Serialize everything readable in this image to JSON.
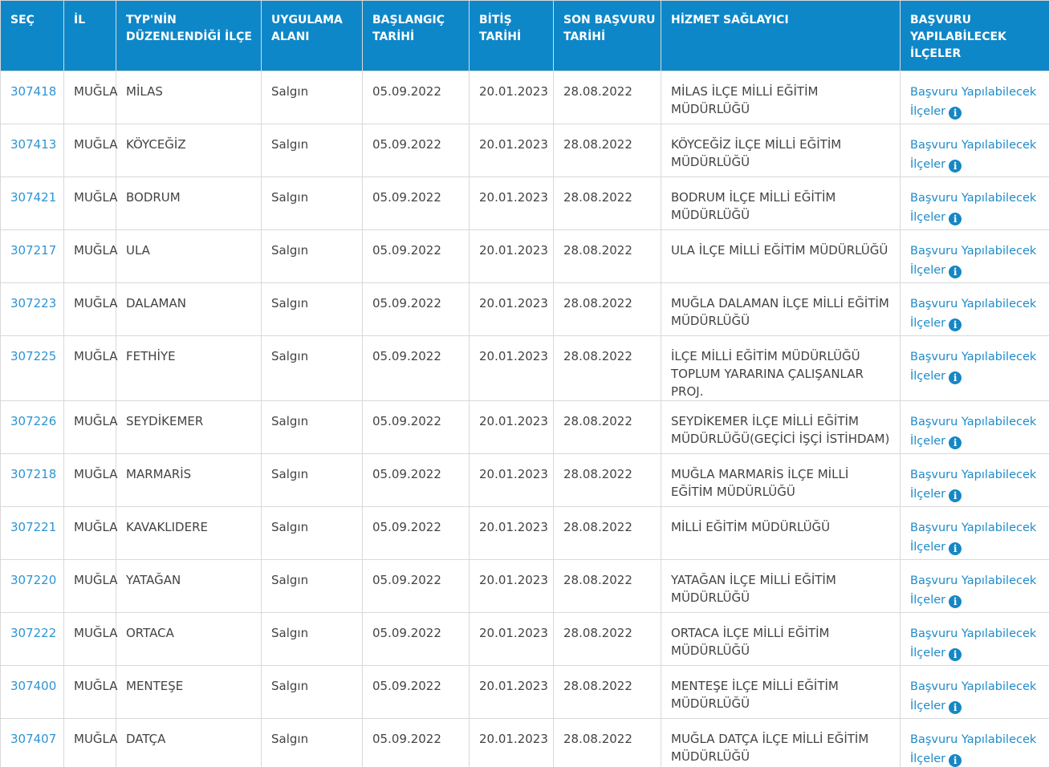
{
  "colors": {
    "header_bg": "#0e87c8",
    "header_text": "#ffffff",
    "link_blue": "#1e8bc9",
    "id_link_blue": "#2e94d2",
    "body_text": "#434343",
    "border": "#d9d9d9",
    "page_bg": "#f5f5f6"
  },
  "table": {
    "columns": [
      {
        "key": "sec",
        "label": "SEÇ"
      },
      {
        "key": "il",
        "label": "İL"
      },
      {
        "key": "ilce",
        "label": "TYP'NİN DÜZENLENDİĞİ İLÇE"
      },
      {
        "key": "alan",
        "label": "UYGULAMA ALANI"
      },
      {
        "key": "baslangic",
        "label": "BAŞLANGIÇ TARİHİ"
      },
      {
        "key": "bitis",
        "label": "BİTİŞ TARİHİ"
      },
      {
        "key": "son_basvuru",
        "label": "SON BAŞVURU TARİHİ"
      },
      {
        "key": "saglayici",
        "label": "HİZMET SAĞLAYICI"
      },
      {
        "key": "basvuru",
        "label": "BAŞVURU YAPILABİLECEK İLÇELER"
      }
    ],
    "apply_link_label": "Başvuru Yapılabilecek İlçeler",
    "info_icon_glyph": "i",
    "rows": [
      {
        "id": "307418",
        "il": "MUĞLA",
        "ilce": "MİLAS",
        "alan": "Salgın",
        "baslangic": "05.09.2022",
        "bitis": "20.01.2023",
        "son_basvuru": "28.08.2022",
        "saglayici": "MİLAS İLÇE MİLLİ EĞİTİM MÜDÜRLÜĞÜ"
      },
      {
        "id": "307413",
        "il": "MUĞLA",
        "ilce": "KÖYCEĞİZ",
        "alan": "Salgın",
        "baslangic": "05.09.2022",
        "bitis": "20.01.2023",
        "son_basvuru": "28.08.2022",
        "saglayici": "KÖYCEĞİZ İLÇE MİLLİ EĞİTİM MÜDÜRLÜĞÜ"
      },
      {
        "id": "307421",
        "il": "MUĞLA",
        "ilce": "BODRUM",
        "alan": "Salgın",
        "baslangic": "05.09.2022",
        "bitis": "20.01.2023",
        "son_basvuru": "28.08.2022",
        "saglayici": "BODRUM İLÇE MİLLİ EĞİTİM MÜDÜRLÜĞÜ"
      },
      {
        "id": "307217",
        "il": "MUĞLA",
        "ilce": "ULA",
        "alan": "Salgın",
        "baslangic": "05.09.2022",
        "bitis": "20.01.2023",
        "son_basvuru": "28.08.2022",
        "saglayici": "ULA İLÇE MİLLİ EĞİTİM MÜDÜRLÜĞÜ"
      },
      {
        "id": "307223",
        "il": "MUĞLA",
        "ilce": "DALAMAN",
        "alan": "Salgın",
        "baslangic": "05.09.2022",
        "bitis": "20.01.2023",
        "son_basvuru": "28.08.2022",
        "saglayici": "MUĞLA DALAMAN İLÇE MİLLİ EĞİTİM MÜDÜRLÜĞÜ"
      },
      {
        "id": "307225",
        "il": "MUĞLA",
        "ilce": "FETHİYE",
        "alan": "Salgın",
        "baslangic": "05.09.2022",
        "bitis": "20.01.2023",
        "son_basvuru": "28.08.2022",
        "saglayici": "İLÇE MİLLİ EĞİTİM MÜDÜRLÜĞÜ TOPLUM YARARINA ÇALIŞANLAR PROJ."
      },
      {
        "id": "307226",
        "il": "MUĞLA",
        "ilce": "SEYDİKEMER",
        "alan": "Salgın",
        "baslangic": "05.09.2022",
        "bitis": "20.01.2023",
        "son_basvuru": "28.08.2022",
        "saglayici": "SEYDİKEMER İLÇE MİLLİ EĞİTİM MÜDÜRLÜĞÜ(GEÇİCİ İŞÇİ İSTİHDAM)"
      },
      {
        "id": "307218",
        "il": "MUĞLA",
        "ilce": "MARMARİS",
        "alan": "Salgın",
        "baslangic": "05.09.2022",
        "bitis": "20.01.2023",
        "son_basvuru": "28.08.2022",
        "saglayici": "MUĞLA MARMARİS İLÇE MİLLİ EĞİTİM MÜDÜRLÜĞÜ"
      },
      {
        "id": "307221",
        "il": "MUĞLA",
        "ilce": "KAVAKLIDERE",
        "alan": "Salgın",
        "baslangic": "05.09.2022",
        "bitis": "20.01.2023",
        "son_basvuru": "28.08.2022",
        "saglayici": "MİLLİ EĞİTİM MÜDÜRLÜĞÜ"
      },
      {
        "id": "307220",
        "il": "MUĞLA",
        "ilce": "YATAĞAN",
        "alan": "Salgın",
        "baslangic": "05.09.2022",
        "bitis": "20.01.2023",
        "son_basvuru": "28.08.2022",
        "saglayici": "YATAĞAN İLÇE MİLLİ EĞİTİM MÜDÜRLÜĞÜ"
      },
      {
        "id": "307222",
        "il": "MUĞLA",
        "ilce": "ORTACA",
        "alan": "Salgın",
        "baslangic": "05.09.2022",
        "bitis": "20.01.2023",
        "son_basvuru": "28.08.2022",
        "saglayici": "ORTACA İLÇE MİLLİ EĞİTİM MÜDÜRLÜĞÜ"
      },
      {
        "id": "307400",
        "il": "MUĞLA",
        "ilce": "MENTEŞE",
        "alan": "Salgın",
        "baslangic": "05.09.2022",
        "bitis": "20.01.2023",
        "son_basvuru": "28.08.2022",
        "saglayici": "MENTEŞE İLÇE MİLLİ EĞİTİM MÜDÜRLÜĞÜ"
      },
      {
        "id": "307407",
        "il": "MUĞLA",
        "ilce": "DATÇA",
        "alan": "Salgın",
        "baslangic": "05.09.2022",
        "bitis": "20.01.2023",
        "son_basvuru": "28.08.2022",
        "saglayici": "MUĞLA DATÇA İLÇE MİLLİ EĞİTİM MÜDÜRLÜĞÜ"
      }
    ]
  }
}
